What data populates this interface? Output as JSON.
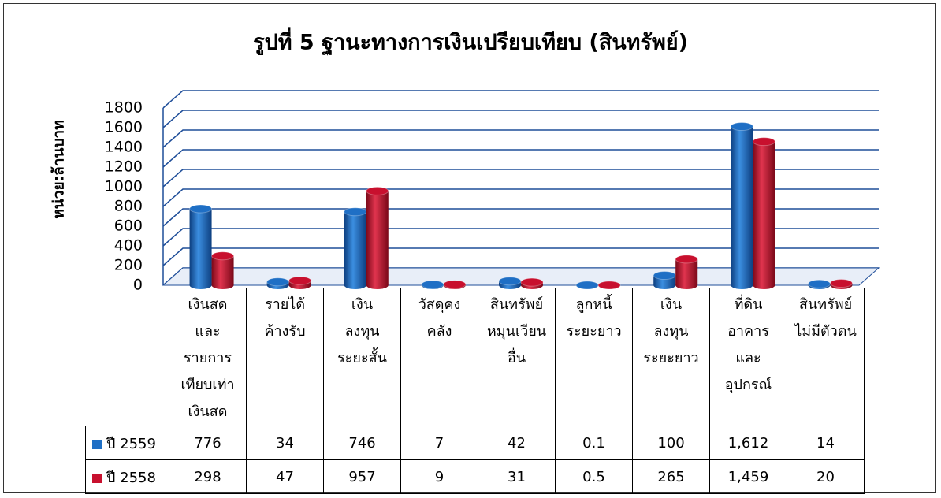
{
  "chart_data": {
    "type": "bar",
    "title": "รูปที่ 5 ฐานะทางการเงินเปรียบเทียบ (สินทรัพย์)",
    "ylabel": "หน่วย:ล้านบาท",
    "categories": [
      "เงินสด\nและ\nรายการ\nเทียบเท่า\nเงินสด",
      "รายได้\nค้างรับ",
      "เงิน\nลงทุน\nระยะสั้น",
      "วัสดุคง\nคลัง",
      "สินทรัพย์\nหมุนเวียน\nอื่น",
      "ลูกหนี้\nระยะยาว",
      "เงิน\nลงทุน\nระยะยาว",
      "ที่ดิน\nอาคาร\nและ\nอุปกรณ์",
      "สินทรัพย์\nไม่มีตัวตน"
    ],
    "series": [
      {
        "name": "ปี 2559",
        "color": "#1f6fc5",
        "values": [
          776,
          34,
          746,
          7,
          42,
          0.1,
          100,
          1612,
          14
        ],
        "value_labels": [
          "776",
          "34",
          "746",
          "7",
          "42",
          "0.1",
          "100",
          "1,612",
          "14"
        ]
      },
      {
        "name": "ปี 2558",
        "color": "#c8102e",
        "values": [
          298,
          47,
          957,
          9,
          31,
          0.5,
          265,
          1459,
          20
        ],
        "value_labels": [
          "298",
          "47",
          "957",
          "9",
          "31",
          "0.5",
          "265",
          "1,459",
          "20"
        ]
      }
    ],
    "ylim": [
      0,
      1800
    ],
    "yticks": [
      0,
      200,
      400,
      600,
      800,
      1000,
      1200,
      1400,
      1600,
      1800
    ],
    "grid": true
  }
}
